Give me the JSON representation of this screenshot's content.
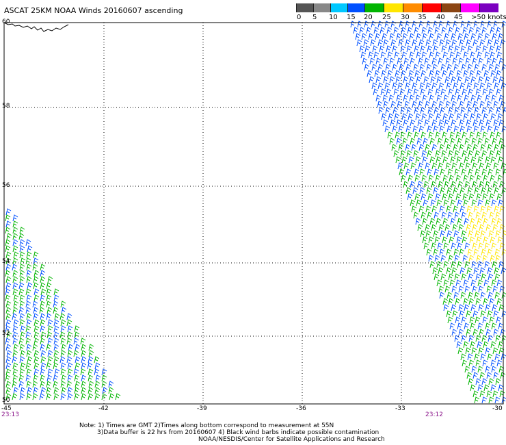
{
  "title": "ASCAT 25KM NOAA Winds 20160607 ascending",
  "legend": {
    "labels": [
      "0",
      "5",
      "10",
      "15",
      "20",
      "25",
      "30",
      "35",
      "40",
      "45",
      ">50 knots"
    ],
    "colors": [
      "#555555",
      "#888888",
      "#00c8ff",
      "#0050ff",
      "#00b400",
      "#ffe600",
      "#ff8c00",
      "#ff0000",
      "#8b4513",
      "#ff00ff",
      "#7b00c0"
    ]
  },
  "axes": {
    "lat_labels": [
      "60",
      "58",
      "56",
      "54",
      "52",
      "50"
    ],
    "lon_labels": [
      "-45",
      "-42",
      "-39",
      "-36",
      "-33",
      "-30"
    ]
  },
  "times": {
    "left": "23:13",
    "right": "23:12"
  },
  "notes": {
    "line1": "Note: 1) Times are GMT 2)Times along bottom correspond to measurement at 55N",
    "line2": "3)Data buffer is 22 hrs from 20160607 4) Black wind barbs indicate possible contamination",
    "line3": "NOAA/NESDIS/Center for Satellite Applications and Research"
  }
}
